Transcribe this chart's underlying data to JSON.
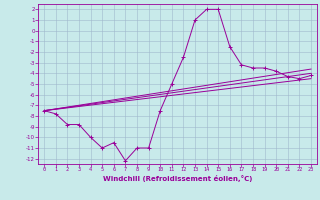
{
  "xlabel": "Windchill (Refroidissement éolien,°C)",
  "bg_color": "#c8eaea",
  "grid_color": "#a0b8cc",
  "line_color": "#990099",
  "xlim": [
    -0.5,
    23.5
  ],
  "ylim": [
    -12.5,
    2.5
  ],
  "xticks": [
    0,
    1,
    2,
    3,
    4,
    5,
    6,
    7,
    8,
    9,
    10,
    11,
    12,
    13,
    14,
    15,
    16,
    17,
    18,
    19,
    20,
    21,
    22,
    23
  ],
  "yticks": [
    2,
    1,
    0,
    -1,
    -2,
    -3,
    -4,
    -5,
    -6,
    -7,
    -8,
    -9,
    -10,
    -11,
    -12
  ],
  "scatter_x": [
    0,
    1,
    2,
    3,
    4,
    5,
    6,
    7,
    8,
    9,
    10,
    11,
    12,
    13,
    14,
    15,
    16,
    17,
    18,
    19,
    20,
    21,
    22,
    23
  ],
  "scatter_y": [
    -7.5,
    -7.8,
    -8.8,
    -8.8,
    -10.0,
    -11.0,
    -10.5,
    -12.2,
    -11.0,
    -11.0,
    -7.5,
    -5.0,
    -2.5,
    1.0,
    2.0,
    2.0,
    -1.5,
    -3.2,
    -3.5,
    -3.5,
    -3.8,
    -4.3,
    -4.5,
    -4.2
  ],
  "line1_x": [
    0,
    23
  ],
  "line1_y": [
    -7.5,
    -3.6
  ],
  "line2_x": [
    0,
    23
  ],
  "line2_y": [
    -7.5,
    -4.0
  ],
  "line3_x": [
    0,
    23
  ],
  "line3_y": [
    -7.5,
    -4.5
  ]
}
